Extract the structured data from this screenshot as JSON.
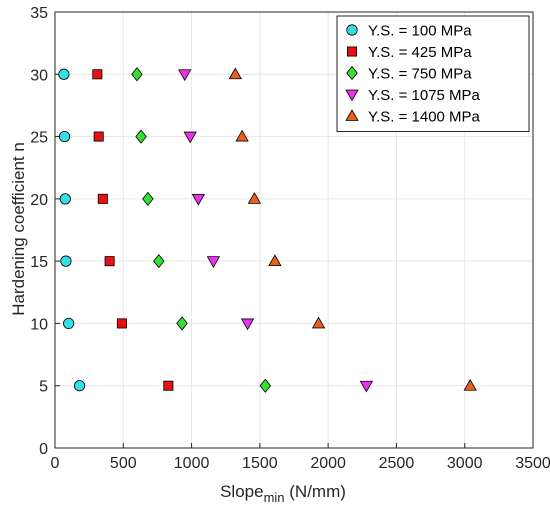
{
  "chart_data": {
    "type": "scatter",
    "xlabel": {
      "main": "Slope",
      "sub": "min",
      "unit": " (N/mm)"
    },
    "ylabel": "Hardening coefficient n",
    "xlim": [
      0,
      3500
    ],
    "ylim": [
      0,
      35
    ],
    "xticks": [
      "0",
      "500",
      "1000",
      "1500",
      "2000",
      "2500",
      "3000",
      "3500"
    ],
    "yticks": [
      "0",
      "5",
      "10",
      "15",
      "20",
      "25",
      "30",
      "35"
    ],
    "grid": true,
    "legend_position": "top-right",
    "series": [
      {
        "name": "Y.S. = 100 MPa",
        "marker": "circle",
        "color": "#33e0e8",
        "points": [
          [
            180,
            5
          ],
          [
            100,
            10
          ],
          [
            80,
            15
          ],
          [
            75,
            20
          ],
          [
            70,
            25
          ],
          [
            65,
            30
          ]
        ]
      },
      {
        "name": "Y.S. = 425 MPa",
        "marker": "square",
        "color": "#e81010",
        "points": [
          [
            830,
            5
          ],
          [
            490,
            10
          ],
          [
            400,
            15
          ],
          [
            350,
            20
          ],
          [
            320,
            25
          ],
          [
            310,
            30
          ]
        ]
      },
      {
        "name": "Y.S. = 750 MPa",
        "marker": "diamond",
        "color": "#33e033",
        "points": [
          [
            1540,
            5
          ],
          [
            930,
            10
          ],
          [
            760,
            15
          ],
          [
            680,
            20
          ],
          [
            630,
            25
          ],
          [
            600,
            30
          ]
        ]
      },
      {
        "name": "Y.S. = 1075 MPa",
        "marker": "triangle-down",
        "color": "#e833e8",
        "points": [
          [
            2280,
            5
          ],
          [
            1410,
            10
          ],
          [
            1160,
            15
          ],
          [
            1050,
            20
          ],
          [
            990,
            25
          ],
          [
            950,
            30
          ]
        ]
      },
      {
        "name": "Y.S. = 1400 MPa",
        "marker": "triangle-up",
        "color": "#e8601e",
        "points": [
          [
            3040,
            5
          ],
          [
            1930,
            10
          ],
          [
            1610,
            15
          ],
          [
            1460,
            20
          ],
          [
            1370,
            25
          ],
          [
            1320,
            30
          ]
        ]
      }
    ]
  }
}
